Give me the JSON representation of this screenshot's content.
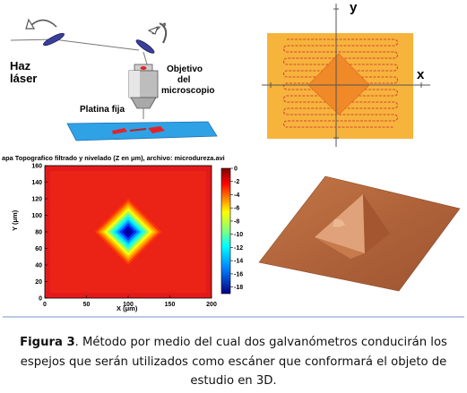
{
  "panel_setup": {
    "laser_label_1": "Haz",
    "laser_label_2": "láser",
    "objective_label_1": "Objetivo",
    "objective_label_2": "del",
    "objective_label_3": "microscopio",
    "stage_label": "Platina fija"
  },
  "panel_scan": {
    "x_label": "x",
    "y_label": "y",
    "plate_color": "#f6b43c",
    "sample_color": "#f08a28",
    "path_color": "#d8463a"
  },
  "panel_heatmap": {
    "title": "apa Topografico filtrado y nivelado (Z en μm), archivo: microdureza.avi",
    "xlabel": "X (μm)",
    "ylabel": "Y (μm)",
    "x_ticks": [
      "0",
      "50",
      "100",
      "150",
      "200"
    ],
    "y_ticks": [
      "0",
      "20",
      "40",
      "60",
      "80",
      "100",
      "120",
      "140",
      "160"
    ],
    "colorbar_ticks": [
      "0",
      "-2",
      "-4",
      "-6",
      "-8",
      "-10",
      "-12",
      "-14",
      "-16",
      "-18"
    ]
  },
  "panel_3d": {
    "surface_color": "#b5683c"
  },
  "caption": {
    "label": "Figura 3",
    "text": ". Método por medio del cual dos galvanómetros conducirán los espejos que serán utilizados como escáner que conformará el objeto de estudio en 3D."
  },
  "chart_data": {
    "type": "heatmap",
    "title": "apa Topografico filtrado y nivelado (Z en μm), archivo: microdureza.avi",
    "xlabel": "X (μm)",
    "ylabel": "Y (μm)",
    "xlim": [
      0,
      200
    ],
    "ylim": [
      0,
      160
    ],
    "colorbar_label": "",
    "colorbar_range": [
      -19,
      0
    ],
    "colormap": "jet",
    "feature": {
      "shape": "diamond (indentation)",
      "center_x": 100,
      "center_y": 80,
      "min_z": -18,
      "half_diagonal": 40
    },
    "z_grid_preview": [
      [
        0,
        0,
        0,
        0,
        0
      ],
      [
        0,
        -2,
        -6,
        -2,
        0
      ],
      [
        0,
        -6,
        -18,
        -6,
        0
      ],
      [
        0,
        -2,
        -6,
        -2,
        0
      ],
      [
        0,
        0,
        0,
        0,
        0
      ]
    ]
  }
}
